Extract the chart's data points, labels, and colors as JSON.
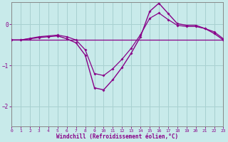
{
  "xlabel": "Windchill (Refroidissement éolien,°C)",
  "bg_color": "#c8eaea",
  "grid_color": "#a8d0d0",
  "line_color": "#880088",
  "xlim": [
    0,
    23
  ],
  "ylim": [
    -2.5,
    0.55
  ],
  "yticks": [
    0,
    -1,
    -2
  ],
  "xticks": [
    0,
    1,
    2,
    3,
    4,
    5,
    6,
    7,
    8,
    9,
    10,
    11,
    12,
    13,
    14,
    15,
    16,
    17,
    18,
    19,
    20,
    21,
    22,
    23
  ],
  "curve1_x": [
    0,
    1,
    2,
    3,
    4,
    5,
    6,
    7,
    8,
    9,
    10,
    11,
    12,
    13,
    14,
    15,
    16,
    17,
    18,
    19,
    20,
    21,
    22,
    23
  ],
  "curve1_y": [
    -0.38,
    -0.38,
    -0.35,
    -0.32,
    -0.3,
    -0.28,
    -0.35,
    -0.45,
    -0.75,
    -1.55,
    -1.6,
    -1.35,
    -1.05,
    -0.7,
    -0.3,
    0.32,
    0.52,
    0.27,
    0.02,
    -0.02,
    -0.02,
    -0.1,
    -0.22,
    -0.38
  ],
  "curve2_x": [
    0,
    1,
    2,
    3,
    4,
    5,
    6,
    7,
    8,
    9,
    10,
    11,
    12,
    13,
    14,
    15,
    16,
    17,
    18,
    19,
    20,
    21,
    22,
    23
  ],
  "curve2_y": [
    -0.38,
    -0.38,
    -0.34,
    -0.3,
    -0.28,
    -0.26,
    -0.3,
    -0.38,
    -0.62,
    -1.2,
    -1.25,
    -1.08,
    -0.85,
    -0.58,
    -0.25,
    0.15,
    0.28,
    0.12,
    -0.02,
    -0.05,
    -0.05,
    -0.1,
    -0.18,
    -0.35
  ],
  "curve3_x": [
    0,
    1,
    2,
    3,
    4,
    5,
    6,
    7,
    8,
    14,
    15,
    16,
    17,
    18,
    19,
    20,
    21,
    22,
    23
  ],
  "curve3_y": [
    -0.38,
    -0.38,
    -0.38,
    -0.38,
    -0.38,
    -0.38,
    -0.38,
    -0.38,
    -0.38,
    -0.38,
    -0.38,
    -0.38,
    -0.38,
    -0.38,
    -0.38,
    -0.38,
    -0.38,
    -0.38,
    -0.38
  ]
}
